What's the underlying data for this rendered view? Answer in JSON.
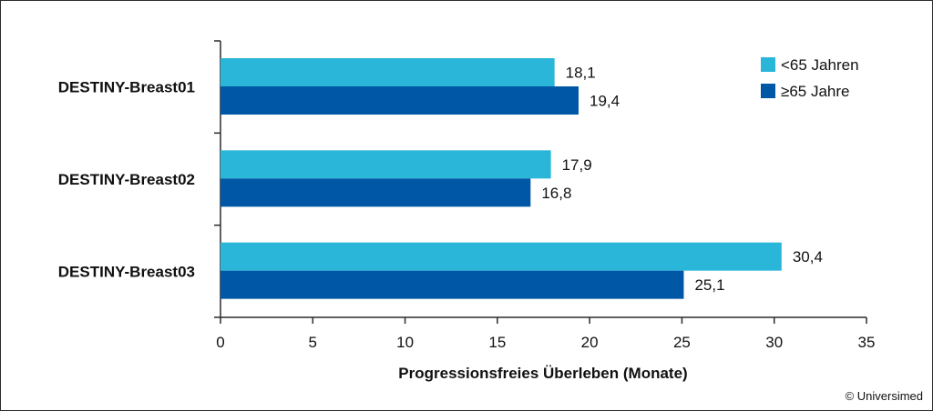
{
  "chart_data": {
    "type": "bar",
    "orientation": "horizontal",
    "categories": [
      "DESTINY-Breast01",
      "DESTINY-Breast02",
      "DESTINY-Breast03"
    ],
    "series": [
      {
        "name": "<65 Jahren",
        "values": [
          18.1,
          17.9,
          30.4
        ],
        "labels": [
          "18,1",
          "17,9",
          "30,4"
        ],
        "color": "#29b6d8"
      },
      {
        "name": "≥65 Jahre",
        "values": [
          19.4,
          16.8,
          25.1
        ],
        "labels": [
          "19,4",
          "16,8",
          "25,1"
        ],
        "color": "#0057a5"
      }
    ],
    "xlabel": "Progressionsfreies Überleben (Monate)",
    "xlim": [
      0,
      35
    ],
    "xticks": [
      0,
      5,
      10,
      15,
      20,
      25,
      30,
      35
    ],
    "grid": false,
    "legend_position": "top-right"
  },
  "footer": {
    "copyright": "© Universimed"
  }
}
